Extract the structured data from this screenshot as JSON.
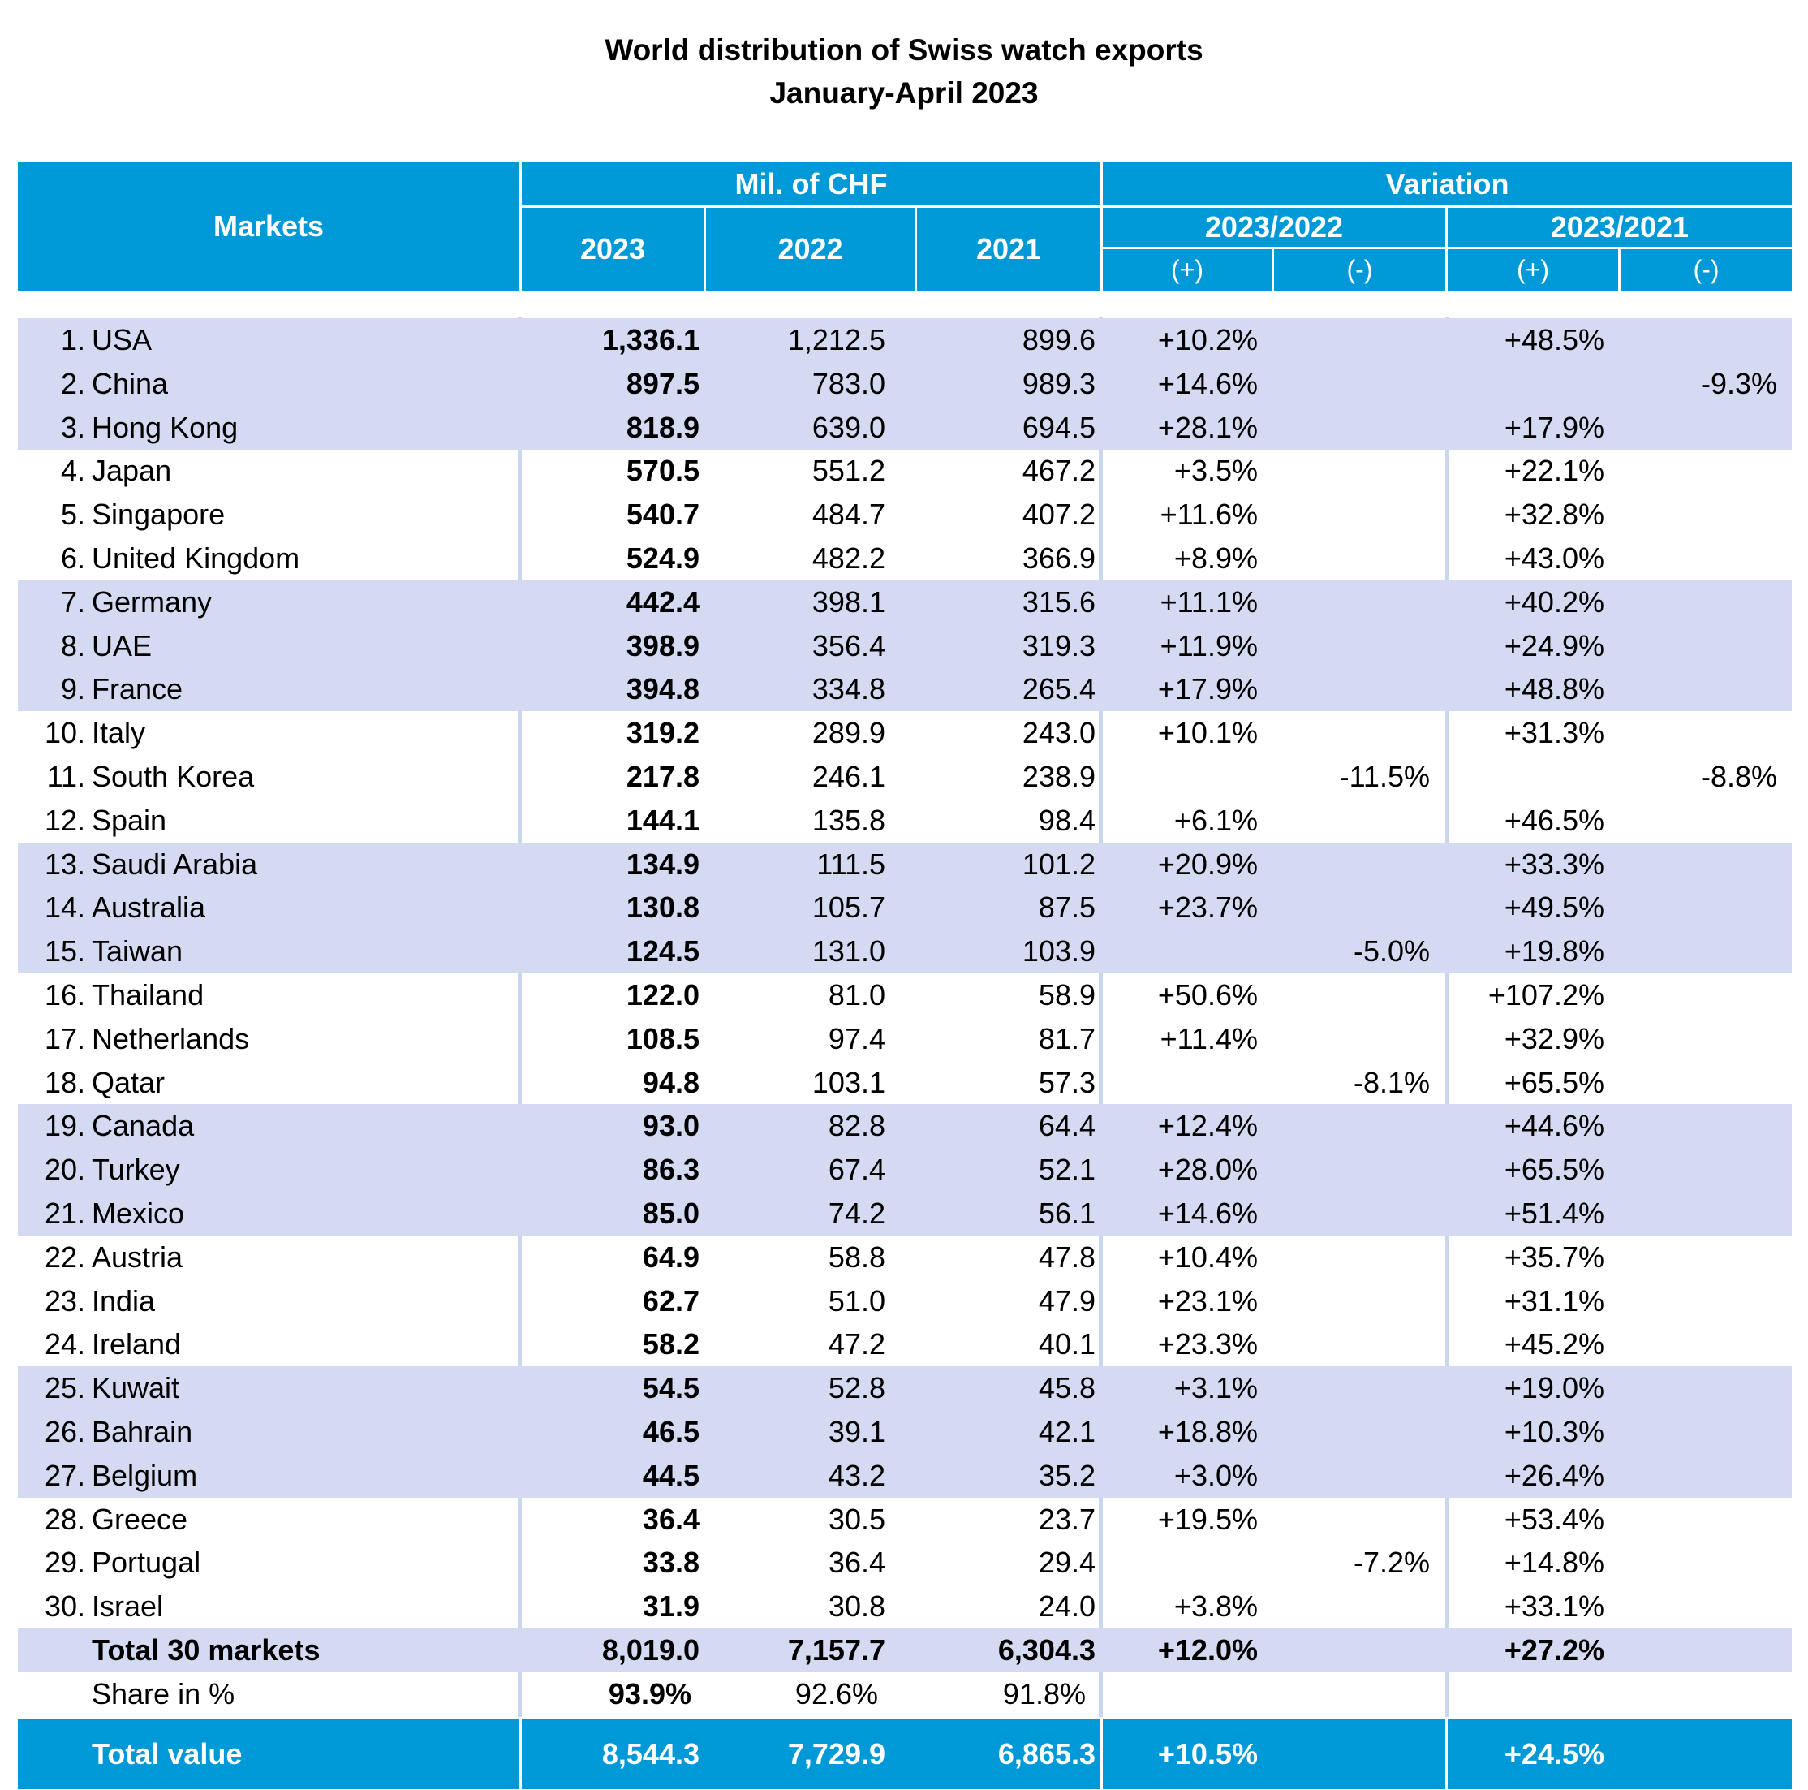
{
  "title": "World distribution of Swiss watch exports",
  "subtitle": "January-April 2023",
  "header": {
    "markets": "Markets",
    "mil_chf": "Mil. of CHF",
    "variation": "Variation",
    "y2023": "2023",
    "y2022": "2022",
    "y2021": "2021",
    "v2023_2022": "2023/2022",
    "v2023_2021": "2023/2021",
    "plus": "(+)",
    "minus": "(-)"
  },
  "rows": [
    {
      "rank": "1.",
      "market": "USA",
      "v2023": "1,336.1",
      "v2022": "1,212.5",
      "v2021": "899.6",
      "p22": "+10.2%",
      "m22": "",
      "p21": "+48.5%",
      "m21": ""
    },
    {
      "rank": "2.",
      "market": "China",
      "v2023": "897.5",
      "v2022": "783.0",
      "v2021": "989.3",
      "p22": "+14.6%",
      "m22": "",
      "p21": "",
      "m21": "-9.3%"
    },
    {
      "rank": "3.",
      "market": "Hong Kong",
      "v2023": "818.9",
      "v2022": "639.0",
      "v2021": "694.5",
      "p22": "+28.1%",
      "m22": "",
      "p21": "+17.9%",
      "m21": ""
    },
    {
      "rank": "4.",
      "market": "Japan",
      "v2023": "570.5",
      "v2022": "551.2",
      "v2021": "467.2",
      "p22": "+3.5%",
      "m22": "",
      "p21": "+22.1%",
      "m21": ""
    },
    {
      "rank": "5.",
      "market": "Singapore",
      "v2023": "540.7",
      "v2022": "484.7",
      "v2021": "407.2",
      "p22": "+11.6%",
      "m22": "",
      "p21": "+32.8%",
      "m21": ""
    },
    {
      "rank": "6.",
      "market": "United Kingdom",
      "v2023": "524.9",
      "v2022": "482.2",
      "v2021": "366.9",
      "p22": "+8.9%",
      "m22": "",
      "p21": "+43.0%",
      "m21": ""
    },
    {
      "rank": "7.",
      "market": "Germany",
      "v2023": "442.4",
      "v2022": "398.1",
      "v2021": "315.6",
      "p22": "+11.1%",
      "m22": "",
      "p21": "+40.2%",
      "m21": ""
    },
    {
      "rank": "8.",
      "market": "UAE",
      "v2023": "398.9",
      "v2022": "356.4",
      "v2021": "319.3",
      "p22": "+11.9%",
      "m22": "",
      "p21": "+24.9%",
      "m21": ""
    },
    {
      "rank": "9.",
      "market": "France",
      "v2023": "394.8",
      "v2022": "334.8",
      "v2021": "265.4",
      "p22": "+17.9%",
      "m22": "",
      "p21": "+48.8%",
      "m21": ""
    },
    {
      "rank": "10.",
      "market": "Italy",
      "v2023": "319.2",
      "v2022": "289.9",
      "v2021": "243.0",
      "p22": "+10.1%",
      "m22": "",
      "p21": "+31.3%",
      "m21": ""
    },
    {
      "rank": "11.",
      "market": "South Korea",
      "v2023": "217.8",
      "v2022": "246.1",
      "v2021": "238.9",
      "p22": "",
      "m22": "-11.5%",
      "p21": "",
      "m21": "-8.8%"
    },
    {
      "rank": "12.",
      "market": "Spain",
      "v2023": "144.1",
      "v2022": "135.8",
      "v2021": "98.4",
      "p22": "+6.1%",
      "m22": "",
      "p21": "+46.5%",
      "m21": ""
    },
    {
      "rank": "13.",
      "market": "Saudi Arabia",
      "v2023": "134.9",
      "v2022": "111.5",
      "v2021": "101.2",
      "p22": "+20.9%",
      "m22": "",
      "p21": "+33.3%",
      "m21": ""
    },
    {
      "rank": "14.",
      "market": "Australia",
      "v2023": "130.8",
      "v2022": "105.7",
      "v2021": "87.5",
      "p22": "+23.7%",
      "m22": "",
      "p21": "+49.5%",
      "m21": ""
    },
    {
      "rank": "15.",
      "market": "Taiwan",
      "v2023": "124.5",
      "v2022": "131.0",
      "v2021": "103.9",
      "p22": "",
      "m22": "-5.0%",
      "p21": "+19.8%",
      "m21": ""
    },
    {
      "rank": "16.",
      "market": "Thailand",
      "v2023": "122.0",
      "v2022": "81.0",
      "v2021": "58.9",
      "p22": "+50.6%",
      "m22": "",
      "p21": "+107.2%",
      "m21": ""
    },
    {
      "rank": "17.",
      "market": "Netherlands",
      "v2023": "108.5",
      "v2022": "97.4",
      "v2021": "81.7",
      "p22": "+11.4%",
      "m22": "",
      "p21": "+32.9%",
      "m21": ""
    },
    {
      "rank": "18.",
      "market": "Qatar",
      "v2023": "94.8",
      "v2022": "103.1",
      "v2021": "57.3",
      "p22": "",
      "m22": "-8.1%",
      "p21": "+65.5%",
      "m21": ""
    },
    {
      "rank": "19.",
      "market": "Canada",
      "v2023": "93.0",
      "v2022": "82.8",
      "v2021": "64.4",
      "p22": "+12.4%",
      "m22": "",
      "p21": "+44.6%",
      "m21": ""
    },
    {
      "rank": "20.",
      "market": "Turkey",
      "v2023": "86.3",
      "v2022": "67.4",
      "v2021": "52.1",
      "p22": "+28.0%",
      "m22": "",
      "p21": "+65.5%",
      "m21": ""
    },
    {
      "rank": "21.",
      "market": "Mexico",
      "v2023": "85.0",
      "v2022": "74.2",
      "v2021": "56.1",
      "p22": "+14.6%",
      "m22": "",
      "p21": "+51.4%",
      "m21": ""
    },
    {
      "rank": "22.",
      "market": "Austria",
      "v2023": "64.9",
      "v2022": "58.8",
      "v2021": "47.8",
      "p22": "+10.4%",
      "m22": "",
      "p21": "+35.7%",
      "m21": ""
    },
    {
      "rank": "23.",
      "market": "India",
      "v2023": "62.7",
      "v2022": "51.0",
      "v2021": "47.9",
      "p22": "+23.1%",
      "m22": "",
      "p21": "+31.1%",
      "m21": ""
    },
    {
      "rank": "24.",
      "market": "Ireland",
      "v2023": "58.2",
      "v2022": "47.2",
      "v2021": "40.1",
      "p22": "+23.3%",
      "m22": "",
      "p21": "+45.2%",
      "m21": ""
    },
    {
      "rank": "25.",
      "market": "Kuwait",
      "v2023": "54.5",
      "v2022": "52.8",
      "v2021": "45.8",
      "p22": "+3.1%",
      "m22": "",
      "p21": "+19.0%",
      "m21": ""
    },
    {
      "rank": "26.",
      "market": "Bahrain",
      "v2023": "46.5",
      "v2022": "39.1",
      "v2021": "42.1",
      "p22": "+18.8%",
      "m22": "",
      "p21": "+10.3%",
      "m21": ""
    },
    {
      "rank": "27.",
      "market": "Belgium",
      "v2023": "44.5",
      "v2022": "43.2",
      "v2021": "35.2",
      "p22": "+3.0%",
      "m22": "",
      "p21": "+26.4%",
      "m21": ""
    },
    {
      "rank": "28.",
      "market": "Greece",
      "v2023": "36.4",
      "v2022": "30.5",
      "v2021": "23.7",
      "p22": "+19.5%",
      "m22": "",
      "p21": "+53.4%",
      "m21": ""
    },
    {
      "rank": "29.",
      "market": "Portugal",
      "v2023": "33.8",
      "v2022": "36.4",
      "v2021": "29.4",
      "p22": "",
      "m22": "-7.2%",
      "p21": "+14.8%",
      "m21": ""
    },
    {
      "rank": "30.",
      "market": "Israel",
      "v2023": "31.9",
      "v2022": "30.8",
      "v2021": "24.0",
      "p22": "+3.8%",
      "m22": "",
      "p21": "+33.1%",
      "m21": ""
    }
  ],
  "total30": {
    "label": "Total 30 markets",
    "v2023": "8,019.0",
    "v2022": "7,157.7",
    "v2021": "6,304.3",
    "p22": "+12.0%",
    "p21": "+27.2%"
  },
  "share": {
    "label": "Share in %",
    "v2023": "93.9%",
    "v2022": "92.6%",
    "v2021": "91.8%"
  },
  "total": {
    "label": "Total value",
    "v2023": "8,544.3",
    "v2022": "7,729.9",
    "v2021": "6,865.3",
    "p22": "+10.5%",
    "p21": "+24.5%"
  },
  "colors": {
    "header_blue": "#0099d8",
    "band": "#d3daf1",
    "header_text": "#ffffff"
  }
}
